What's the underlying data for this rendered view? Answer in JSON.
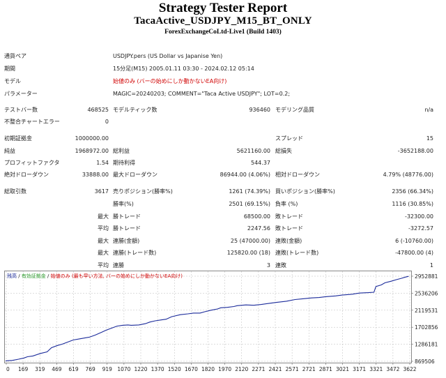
{
  "header": {
    "title": "Strategy Tester Report",
    "subtitle": "TacaActive_USDJPY_M15_BT_ONLY",
    "server": "ForexExchangeCoLtd-Live1 (Build 1403)"
  },
  "settings": {
    "symbol_label": "通貨ペア",
    "symbol_value": "USDJPY.pers (US Dollar vs Japanise Yen)",
    "period_label": "期間",
    "period_value": "15分足(M15) 2005.01.11 03:30 - 2024.02.12 05:14",
    "model_label": "モデル",
    "model_value": "始値のみ (バーの始めにしか動かないEA向け)",
    "params_label": "パラメーター",
    "params_value": "MAGIC=20240203; COMMENT=\"Taca Active USDJPY\"; LOT=0.2;"
  },
  "stats": {
    "bars_label": "テストバー数",
    "bars_value": "468525",
    "ticks_label": "モデルティック数",
    "ticks_value": "936460",
    "quality_label": "モデリング品質",
    "quality_value": "n/a",
    "mismatch_label": "不整合チャートエラー",
    "mismatch_value": "0",
    "deposit_label": "初期証拠金",
    "deposit_value": "1000000.00",
    "spread_label": "スプレッド",
    "spread_value": "15",
    "net_label": "純益",
    "net_value": "1968972.00",
    "gross_profit_label": "総利益",
    "gross_profit_value": "5621160.00",
    "gross_loss_label": "総損失",
    "gross_loss_value": "-3652188.00",
    "pf_label": "プロフィットファクタ",
    "pf_value": "1.54",
    "expected_label": "期待利得",
    "expected_value": "544.37",
    "abs_dd_label": "絶対ドローダウン",
    "abs_dd_value": "33888.00",
    "max_dd_label": "最大ドローダウン",
    "max_dd_value": "86944.00 (4.06%)",
    "rel_dd_label": "相対ドローダウン",
    "rel_dd_value": "4.79% (48776.00)",
    "trades_label": "総取引数",
    "trades_value": "3617",
    "short_label": "売りポジション(勝率%)",
    "short_value": "1261 (74.39%)",
    "long_label": "買いポジション(勝率%)",
    "long_value": "2356 (66.34%)",
    "win_rate_label": "勝率(%)",
    "win_rate_value": "2501 (69.15%)",
    "loss_rate_label": "負率 (%)",
    "loss_rate_value": "1116 (30.85%)",
    "max_label": "最大",
    "avg_label": "平均",
    "largest_win_label": "勝トレード",
    "largest_win_value": "68500.00",
    "largest_loss_label": "敗トレード",
    "largest_loss_value": "-32300.00",
    "avg_win_label": "勝トレード",
    "avg_win_value": "2247.56",
    "avg_loss_label": "敗トレード",
    "avg_loss_value": "-3272.57",
    "max_consec_wins_label": "連勝(金額)",
    "max_consec_wins_value": "25 (47000.00)",
    "max_consec_losses_label": "連敗(金額)",
    "max_consec_losses_value": "6 (-10760.00)",
    "max_consec_profit_label": "連勝(トレード数)",
    "max_consec_profit_value": "125820.00 (18)",
    "max_consec_loss_label": "連敗(トレード数)",
    "max_consec_loss_value": "-47800.00 (4)",
    "avg_consec_wins_label": "連勝",
    "avg_consec_wins_value": "3",
    "avg_consec_losses_label": "連敗",
    "avg_consec_losses_value": "1"
  },
  "colors": {
    "line": "#1a2a9a",
    "accent_red": "#d00000",
    "legend_blue": "#1a2a9a",
    "legend_green": "#2a9a2a",
    "grid": "#bbbbbb"
  },
  "chart_data": {
    "type": "line",
    "legend": [
      {
        "text": "残高",
        "color": "#1a2a9a"
      },
      {
        "text": " / ",
        "color": "#222222"
      },
      {
        "text": "有効証拠金",
        "color": "#2a9a2a"
      },
      {
        "text": " / ",
        "color": "#222222"
      },
      {
        "text": "始値のみ (最も早い方法, バーの始めにしか動かないEA向け)",
        "color": "#d00000"
      }
    ],
    "x_ticks": [
      "0",
      "169",
      "319",
      "469",
      "619",
      "769",
      "919",
      "1070",
      "1220",
      "1370",
      "1520",
      "1670",
      "1820",
      "1970",
      "2120",
      "2271",
      "2421",
      "2571",
      "2721",
      "2871",
      "3021",
      "3171",
      "3321",
      "3472",
      "3622"
    ],
    "y_ticks": [
      "2952881",
      "2536206",
      "2119531",
      "1702856",
      "1286181",
      "869506"
    ],
    "ylim": [
      869506,
      2952881
    ],
    "xlim": [
      0,
      3700
    ],
    "series": [
      {
        "x": [
          0,
          60,
          120,
          169,
          200,
          250,
          319,
          380,
          420,
          469,
          520,
          560,
          619,
          680,
          769,
          820,
          880,
          919,
          970,
          1020,
          1070,
          1120,
          1150,
          1220,
          1280,
          1320,
          1370,
          1420,
          1470,
          1520,
          1600,
          1670,
          1720,
          1780,
          1820,
          1880,
          1940,
          1970,
          2030,
          2090,
          2120,
          2200,
          2271,
          2340,
          2421,
          2480,
          2571,
          2650,
          2721,
          2800,
          2871,
          2930,
          3021,
          3080,
          3171,
          3240,
          3321,
          3372,
          3390,
          3440,
          3472,
          3530,
          3580,
          3622,
          3660,
          3690
        ],
        "y": [
          880000,
          890000,
          920000,
          950000,
          980000,
          1000000,
          1060000,
          1100000,
          1200000,
          1250000,
          1290000,
          1330000,
          1390000,
          1420000,
          1460000,
          1510000,
          1580000,
          1630000,
          1680000,
          1730000,
          1750000,
          1760000,
          1750000,
          1760000,
          1790000,
          1830000,
          1860000,
          1880000,
          1900000,
          1960000,
          2010000,
          2030000,
          2050000,
          2050000,
          2080000,
          2120000,
          2150000,
          2180000,
          2190000,
          2210000,
          2230000,
          2250000,
          2240000,
          2260000,
          2290000,
          2310000,
          2340000,
          2380000,
          2400000,
          2420000,
          2430000,
          2450000,
          2470000,
          2490000,
          2510000,
          2540000,
          2550000,
          2560000,
          2700000,
          2740000,
          2790000,
          2830000,
          2870000,
          2900000,
          2930000,
          2950000
        ]
      }
    ]
  }
}
